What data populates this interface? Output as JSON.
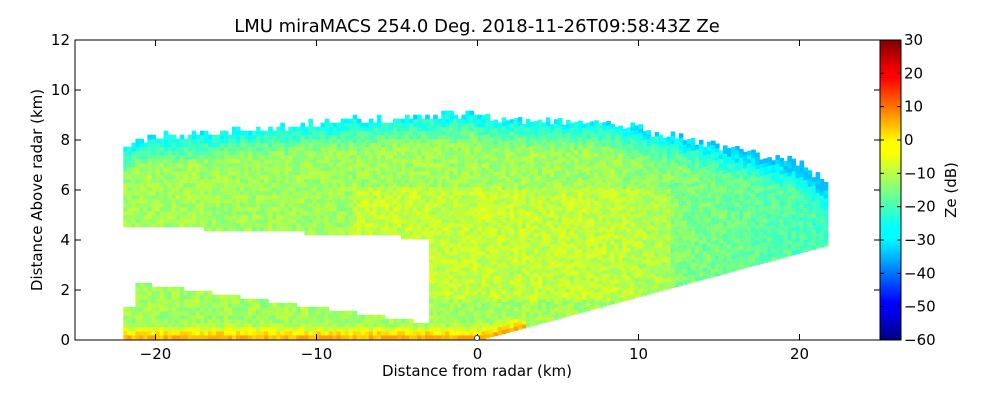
{
  "chart_data": {
    "type": "heatmap",
    "title": "LMU miraMACS 254.0 Deg. 2018-11-26T09:58:43Z  Ze",
    "xlabel": "Distance from radar (km)",
    "ylabel": "Distance Above radar  (km)",
    "xlim": [
      -25,
      25
    ],
    "ylim": [
      0,
      12
    ],
    "xticks": [
      -20,
      -10,
      0,
      10,
      20
    ],
    "xtick_labels": [
      "−20",
      "−10",
      "0",
      "10",
      "20"
    ],
    "yticks": [
      0,
      2,
      4,
      6,
      8,
      10,
      12
    ],
    "ytick_labels": [
      "0",
      "2",
      "4",
      "6",
      "8",
      "10",
      "12"
    ],
    "colorbar": {
      "label": "Ze (dB)",
      "range": [
        -60,
        30
      ],
      "colormap": "jet",
      "ticks": [
        30,
        20,
        10,
        0,
        -10,
        -20,
        -30,
        -40,
        -50,
        -60
      ],
      "tick_labels": [
        "30",
        "20",
        "10",
        "0",
        "−10",
        "−20",
        "−30",
        "−40",
        "−50",
        "−60"
      ]
    },
    "scan": {
      "azimuth_deg": 254.0,
      "left_echo_top_km": 8.0,
      "right_echo_top_km": 7.0,
      "peak_echo_top_km": 9.0,
      "left_gap_bottom_km": 2.0,
      "left_gap_top_km": 4.5,
      "typical_ze_db": -12,
      "max_ze_db": 5,
      "min_ze_db": -32
    }
  }
}
